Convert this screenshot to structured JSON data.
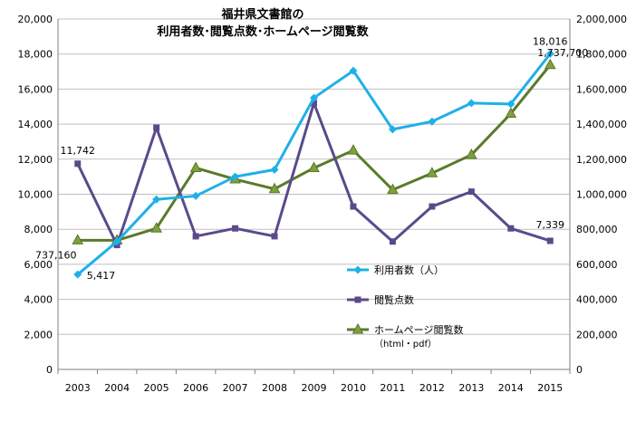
{
  "chart_data": {
    "type": "line",
    "title_line1": "福井県文書館の",
    "title_line2": "利用者数･閲覧点数･ホームページ閲覧数",
    "categories": [
      "2003",
      "2004",
      "2005",
      "2006",
      "2007",
      "2008",
      "2009",
      "2010",
      "2011",
      "2012",
      "2013",
      "2014",
      "2015"
    ],
    "y_left": {
      "min": 0,
      "max": 20000,
      "step": 2000,
      "tick_labels": [
        "0",
        "2,000",
        "4,000",
        "6,000",
        "8,000",
        "10,000",
        "12,000",
        "14,000",
        "16,000",
        "18,000",
        "20,000"
      ]
    },
    "y_right": {
      "min": 0,
      "max": 2000000,
      "step": 200000,
      "tick_labels": [
        "0",
        "200,000",
        "400,000",
        "600,000",
        "800,000",
        "1,000,000",
        "1,200,000",
        "1,400,000",
        "1,600,000",
        "1,800,000",
        "2,000,000"
      ]
    },
    "grid": true,
    "legend_position": "right-center",
    "series": [
      {
        "name": "利用者数（人）",
        "axis": "left",
        "color": "#1fb0e8",
        "marker": "diamond",
        "values": [
          5417,
          7300,
          9700,
          9900,
          11000,
          11400,
          15500,
          17050,
          13700,
          14150,
          15200,
          15150,
          18016
        ]
      },
      {
        "name": "閲覧点数",
        "axis": "left",
        "color": "#5b4a8b",
        "marker": "square",
        "values": [
          11742,
          7100,
          13800,
          7600,
          8050,
          7600,
          15200,
          9300,
          7300,
          9300,
          10150,
          8050,
          7339
        ]
      },
      {
        "name": "ホームページ閲覧数",
        "name_sub": "（html・pdf）",
        "axis": "right",
        "color": "#5a7a2b",
        "marker": "triangle",
        "values": [
          737160,
          737000,
          805000,
          1150000,
          1085000,
          1030000,
          1150000,
          1250000,
          1025000,
          1120000,
          1225000,
          1460000,
          1737700
        ]
      }
    ],
    "annotations": [
      {
        "series": 0,
        "index": 0,
        "text": "5,417"
      },
      {
        "series": 0,
        "index": 12,
        "text": "18,016"
      },
      {
        "series": 1,
        "index": 0,
        "text": "11,742"
      },
      {
        "series": 1,
        "index": 12,
        "text": "7,339"
      },
      {
        "series": 2,
        "index": 0,
        "text": "737,160"
      },
      {
        "series": 2,
        "index": 12,
        "text": "1,737,700"
      }
    ]
  }
}
